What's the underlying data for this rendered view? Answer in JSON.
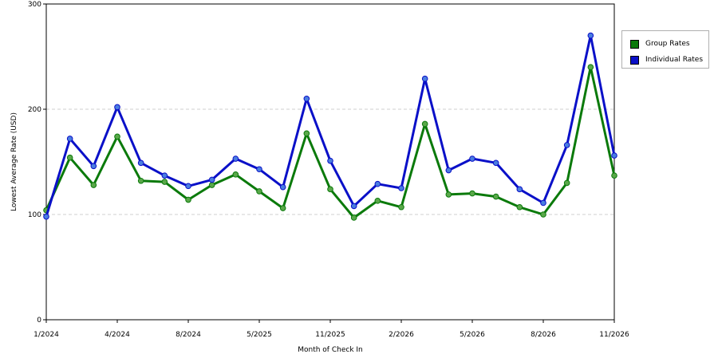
{
  "colors": {
    "group": "#0b7a0b",
    "individual": "#0a10c8",
    "group_marker": "#5aa84a",
    "individual_marker": "#4a7de0",
    "grid": "#cfcfcf",
    "axis": "#000000"
  },
  "chart_data": {
    "type": "line",
    "xlabel": "Month of Check In",
    "ylabel": "Lowest Average Rate (USD)",
    "ylim": [
      0,
      300
    ],
    "yticks": [
      0,
      100,
      200,
      300
    ],
    "grid": "horizontal dashed",
    "legend_position": "top-right",
    "x_tick_labels": [
      "1/2024",
      "4/2024",
      "8/2024",
      "5/2025",
      "11/2025",
      "2/2026",
      "5/2026",
      "8/2026",
      "11/2026"
    ],
    "x_tick_indices": [
      0,
      3,
      6,
      9,
      12,
      15,
      18,
      21,
      24
    ],
    "series": [
      {
        "name": "Group Rates",
        "color_key": "group",
        "values": [
          104,
          154,
          128,
          174,
          132,
          131,
          114,
          128,
          138,
          122,
          106,
          177,
          124,
          97,
          113,
          107,
          186,
          119,
          120,
          117,
          107,
          100,
          130,
          240,
          137
        ]
      },
      {
        "name": "Individual Rates",
        "color_key": "individual",
        "values": [
          98,
          172,
          146,
          202,
          149,
          137,
          127,
          133,
          153,
          143,
          126,
          210,
          151,
          108,
          129,
          125,
          229,
          142,
          153,
          149,
          124,
          111,
          166,
          270,
          156
        ]
      }
    ]
  }
}
